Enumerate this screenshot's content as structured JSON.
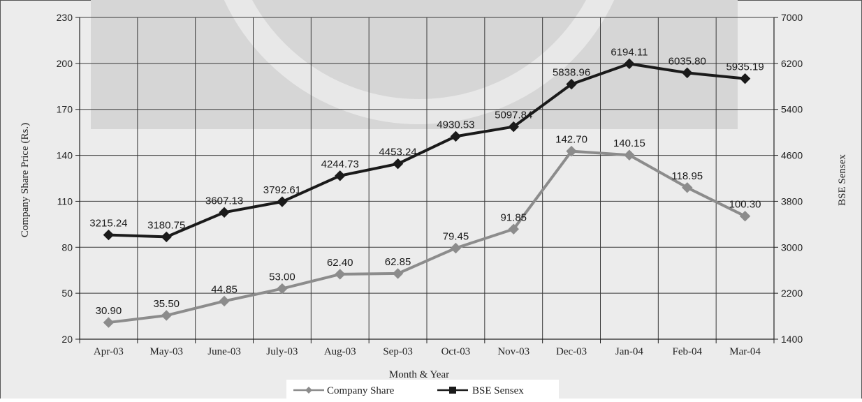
{
  "chart_data": {
    "type": "line",
    "xlabel": "Month & Year",
    "ylabel_left": "Company Share Price (Rs.)",
    "ylabel_right": "BSE Sensex",
    "categories": [
      "Apr-03",
      "May-03",
      "June-03",
      "July-03",
      "Aug-03",
      "Sep-03",
      "Oct-03",
      "Nov-03",
      "Dec-03",
      "Jan-04",
      "Feb-04",
      "Mar-04"
    ],
    "y_left": {
      "min": 20,
      "max": 230,
      "ticks": [
        20,
        50,
        80,
        110,
        140,
        170,
        200,
        230
      ]
    },
    "y_right": {
      "min": 1400,
      "max": 7000,
      "ticks": [
        1400,
        2200,
        3000,
        3800,
        4600,
        5400,
        6200,
        7000
      ]
    },
    "grid": true,
    "legend_position": "bottom",
    "series": [
      {
        "name": "Company Share",
        "axis": "left",
        "color": "#8c8c8c",
        "marker": "diamond",
        "values": [
          30.9,
          35.5,
          44.85,
          53.0,
          62.4,
          62.85,
          79.45,
          91.85,
          142.7,
          140.15,
          118.95,
          100.3
        ],
        "labels": [
          "30.90",
          "35.50",
          "44.85",
          "53.00",
          "62.40",
          "62.85",
          "79.45",
          "91.85",
          "142.70",
          "140.15",
          "118.95",
          "100.30"
        ]
      },
      {
        "name": "BSE Sensex",
        "axis": "right",
        "color": "#1a1a1a",
        "marker": "diamond",
        "values": [
          3215.24,
          3180.75,
          3607.13,
          3792.61,
          4244.73,
          4453.24,
          4930.53,
          5097.84,
          5838.96,
          6194.11,
          6035.8,
          5935.19
        ],
        "labels": [
          "3215.24",
          "3180.75",
          "3607.13",
          "3792.61",
          "4244.73",
          "4453.24",
          "4930.53",
          "5097.84",
          "5838.96",
          "6194.11",
          "6035.80",
          "5935.19"
        ]
      }
    ]
  }
}
